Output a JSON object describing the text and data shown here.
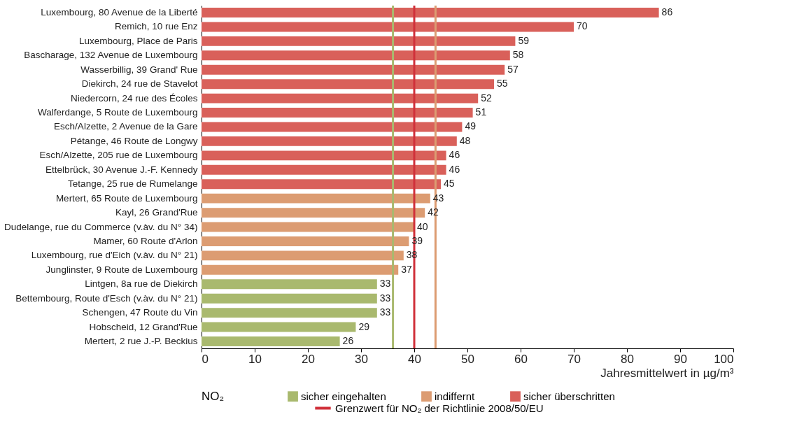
{
  "chart_data": {
    "type": "bar",
    "orientation": "horizontal",
    "data_labels": true,
    "xlabel": "Jahresmittelwert in µg/m³",
    "legend_title": "NO₂",
    "legend": "bottom",
    "categories": [
      "Luxembourg, 80 Avenue de la Liberté",
      "Remich, 10 rue Enz",
      "Luxembourg, Place de Paris",
      "Bascharage, 132 Avenue de Luxembourg",
      "Wasserbillig, 39 Grand' Rue",
      "Diekirch, 24 rue de Stavelot",
      "Niedercorn, 24 rue des Écoles",
      "Walferdange, 5 Route de Luxembourg",
      "Esch/Alzette, 2 Avenue de la Gare",
      "Pétange, 46 Route de Longwy",
      "Esch/Alzette, 205 rue de Luxembourg",
      "Ettelbrück, 30 Avenue J.-F. Kennedy",
      "Tetange, 25 rue de Rumelange",
      "Mertert, 65 Route de Luxembourg",
      "Kayl, 26 Grand'Rue",
      "Dudelange, rue du Commerce (v.àv. du N° 34)",
      "Mamer, 60 Route d'Arlon",
      "Luxembourg, rue d'Eich (v.àv. du N° 21)",
      "Junglinster, 9 Route de Luxembourg",
      "Lintgen, 8a rue de Diekirch",
      "Bettembourg, Route d'Esch (v.àv. du N° 21)",
      "Schengen, 47 Route du Vin",
      "Hobscheid, 12 Grand'Rue",
      "Mertert, 2 rue J.-P. Beckius"
    ],
    "series": [
      {
        "name": "sicher eingehalten",
        "color": "#a9b96e",
        "values": [
          null,
          null,
          null,
          null,
          null,
          null,
          null,
          null,
          null,
          null,
          null,
          null,
          null,
          null,
          null,
          null,
          null,
          null,
          null,
          33,
          33,
          33,
          29,
          26
        ]
      },
      {
        "name": "indiffernt",
        "color": "#dc9c72",
        "values": [
          null,
          null,
          null,
          null,
          null,
          null,
          null,
          null,
          null,
          null,
          null,
          null,
          null,
          43,
          42,
          40,
          39,
          38,
          37,
          null,
          null,
          null,
          null,
          null
        ]
      },
      {
        "name": "sicher überschritten",
        "color": "#d9605a",
        "values": [
          86,
          70,
          59,
          58,
          57,
          55,
          52,
          51,
          49,
          48,
          46,
          46,
          45,
          null,
          null,
          null,
          null,
          null,
          null,
          null,
          null,
          null,
          null,
          null
        ]
      }
    ],
    "xlim": [
      0,
      100
    ],
    "xticks": [
      0,
      10,
      20,
      30,
      40,
      50,
      60,
      70,
      80,
      90,
      100
    ],
    "ref_lines": [
      {
        "axis": "x",
        "value": 36,
        "color": "#a9b96e"
      },
      {
        "axis": "x",
        "value": 40,
        "color": "#d0303a",
        "label": "Grenzwert für NO₂ der Richtlinie 2008/50/EU"
      },
      {
        "axis": "x",
        "value": 44,
        "color": "#dc9c72"
      }
    ]
  }
}
